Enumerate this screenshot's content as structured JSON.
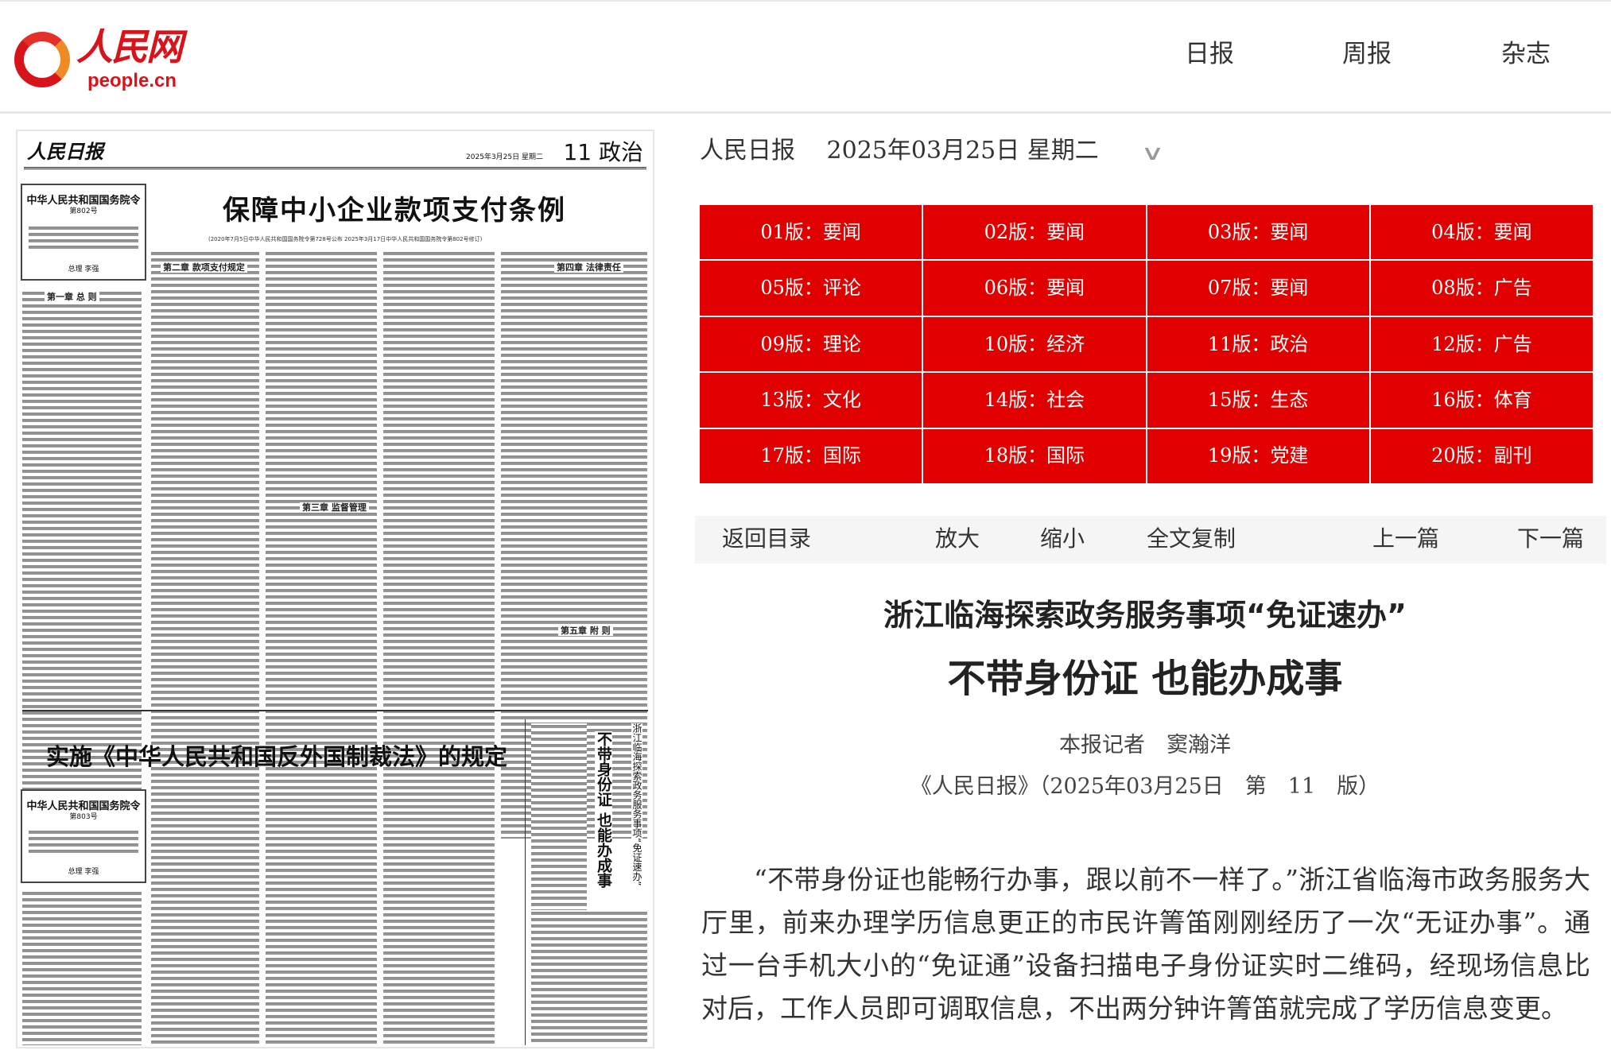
{
  "header": {
    "logo_cn": "人民网",
    "logo_en": "people.cn",
    "nav": [
      "日报",
      "周报",
      "杂志"
    ]
  },
  "paper": {
    "masthead": "人民日报",
    "date": "2025年3月25日 星期二",
    "section": "11 政治",
    "headline1": "保障中小企业款项支付条例",
    "subline1": "(2020年7月5日中华人民共和国国务院令第728号公布 2025年3月17日中华人民共和国国务院令第802号修订)",
    "order1_title": "中华人民共和国国务院令",
    "order1_no": "第802号",
    "order1_sign": "总理 李强",
    "chapters": [
      "第一章 总 则",
      "第二章 款项支付规定",
      "第三章 监督管理",
      "第四章 法律责任",
      "第五章 附 则"
    ],
    "headline2": "实施《中华人民共和国反外国制裁法》的规定",
    "order2_title": "中华人民共和国国务院令",
    "order2_no": "第803号",
    "order2_sign": "总理 李强",
    "vertical_title": "浙江临海探索政务服务事项“免证速办”",
    "vertical_main": "不带身份证 也能办成事"
  },
  "selector": {
    "paper": "人民日报",
    "date": "2025年03月25日",
    "weekday": "星期二",
    "icon": "chevron-down-icon"
  },
  "pages": [
    "01版：要闻",
    "02版：要闻",
    "03版：要闻",
    "04版：要闻",
    "05版：评论",
    "06版：要闻",
    "07版：要闻",
    "08版：广告",
    "09版：理论",
    "10版：经济",
    "11版：政治",
    "12版：广告",
    "13版：文化",
    "14版：社会",
    "15版：生态",
    "16版：体育",
    "17版：国际",
    "18版：国际",
    "19版：党建",
    "20版：副刊"
  ],
  "pages_color": "#e00000",
  "toolbar": {
    "back": "返回目录",
    "zoom_in": "放大",
    "zoom_out": "缩小",
    "copy": "全文复制",
    "prev": "上一篇",
    "next": "下一篇"
  },
  "article": {
    "kicker": "浙江临海探索政务服务事项“免证速办”",
    "title": "不带身份证 也能办成事",
    "byline": "本报记者　窦瀚洋",
    "source": "《人民日报》（2025年03月25日　第　11　版）",
    "body": "“不带身份证也能畅行办事，跟以前不一样了。”浙江省临海市政务服务大厅里，前来办理学历信息更正的市民许箐笛刚刚经历了一次“无证办事”。通过一台手机大小的“免证通”设备扫描电子身份证实时二维码，经现场信息比对后，工作人员即可调取信息，不出两分钟许箐笛就完成了学历信息变更。"
  }
}
